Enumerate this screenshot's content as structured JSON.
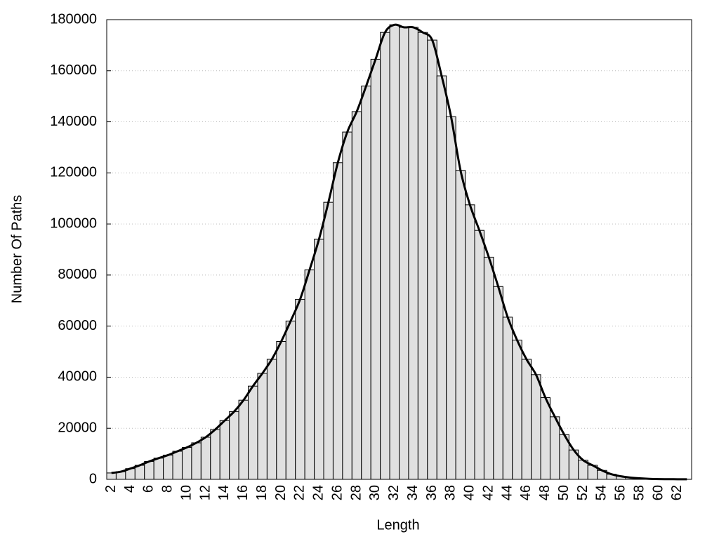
{
  "chart_data": {
    "type": "bar",
    "x_label": "Length",
    "y_label": "Number Of Paths",
    "categories": [
      "2",
      null,
      "4",
      null,
      "6",
      null,
      "8",
      null,
      "10",
      null,
      "12",
      null,
      "14",
      null,
      "16",
      null,
      "18",
      null,
      "20",
      null,
      "22",
      null,
      "24",
      null,
      "26",
      null,
      "28",
      null,
      "30",
      null,
      "32",
      null,
      "34",
      null,
      "36",
      null,
      "38",
      null,
      "40",
      null,
      "42",
      null,
      "44",
      null,
      "46",
      null,
      "48",
      null,
      "50",
      null,
      "52",
      null,
      "54",
      null,
      "56",
      null,
      "58",
      null,
      "60",
      null,
      "62",
      null
    ],
    "values": [
      2500,
      3000,
      4200,
      5500,
      7000,
      8300,
      9500,
      11000,
      12500,
      14300,
      16500,
      19500,
      23000,
      26500,
      31000,
      36500,
      41500,
      47000,
      54000,
      62000,
      70500,
      82000,
      94000,
      108500,
      124000,
      136000,
      144000,
      154000,
      164500,
      175000,
      178000,
      177000,
      177000,
      175000,
      172000,
      158000,
      142000,
      121000,
      107500,
      97500,
      87000,
      75500,
      63500,
      54500,
      47000,
      41000,
      32000,
      24500,
      17500,
      11500,
      7500,
      5500,
      3500,
      2000,
      1200,
      700,
      400,
      200,
      100,
      80,
      50,
      30
    ],
    "color": "#e0e0e0",
    "line_color": "#000000",
    "ylim": [
      0,
      180000
    ],
    "yticks": [
      0,
      20000,
      40000,
      60000,
      80000,
      100000,
      120000,
      140000,
      160000,
      180000
    ],
    "grid": true
  }
}
